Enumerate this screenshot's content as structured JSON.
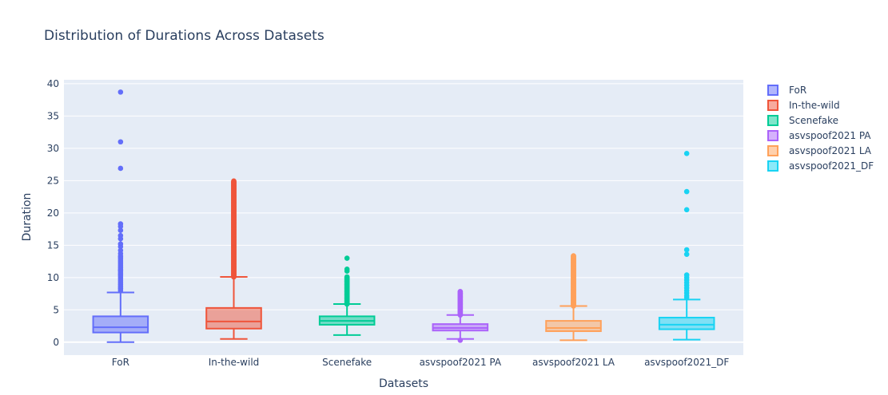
{
  "chart_data": {
    "type": "box",
    "title": "Distribution of Durations Across Datasets",
    "xlabel": "Datasets",
    "ylabel": "Duration",
    "ylim": [
      -2,
      40.6
    ],
    "yticks": [
      0,
      5,
      10,
      15,
      20,
      25,
      30,
      35,
      40
    ],
    "grid": true,
    "legend_position": "right",
    "categories": [
      "FoR",
      "In-the-wild",
      "Scenefake",
      "asvspoof2021 PA",
      "asvspoof2021 LA",
      "asvspoof2021_DF"
    ],
    "series": [
      {
        "name": "FoR",
        "color": "#636efa",
        "min": 0.0,
        "q1": 1.5,
        "median": 2.3,
        "q3": 4.0,
        "max": 7.7,
        "outliers": [
          38.7,
          31.0,
          26.9,
          18.3,
          17.9,
          17.3,
          16.5,
          16.0,
          15.2,
          14.8,
          14.2,
          13.7,
          13.3,
          13.0,
          12.7,
          12.4,
          12.1,
          11.8,
          11.5,
          11.2,
          11.0,
          10.7,
          10.4,
          10.1,
          9.8,
          9.5,
          9.2,
          8.9,
          8.6,
          8.3,
          8.0
        ]
      },
      {
        "name": "In-the-wild",
        "color": "#ef553b",
        "min": 0.5,
        "q1": 2.1,
        "median": 3.2,
        "q3": 5.3,
        "max": 10.1,
        "outlier_range": [
          10.1,
          25.0
        ]
      },
      {
        "name": "Scenefake",
        "color": "#00cc96",
        "min": 1.1,
        "q1": 2.7,
        "median": 3.3,
        "q3": 4.0,
        "max": 5.9,
        "outliers": [
          13.0,
          11.3,
          11.0
        ],
        "outlier_range": [
          5.9,
          10.1
        ]
      },
      {
        "name": "asvspoof2021 PA",
        "color": "#ab63fa",
        "min": 0.5,
        "q1": 1.8,
        "median": 2.2,
        "q3": 2.8,
        "max": 4.2,
        "outliers": [
          0.3
        ],
        "outlier_range": [
          4.2,
          7.9
        ]
      },
      {
        "name": "asvspoof2021 LA",
        "color": "#ffa15a",
        "min": 0.3,
        "q1": 1.7,
        "median": 2.2,
        "q3": 3.3,
        "max": 5.6,
        "outlier_range": [
          5.6,
          13.4
        ]
      },
      {
        "name": "asvspoof2021_DF",
        "color": "#19d3f3",
        "min": 0.4,
        "q1": 2.0,
        "median": 2.7,
        "q3": 3.8,
        "max": 6.6,
        "outliers": [
          29.2,
          23.3,
          20.5,
          14.3,
          13.6,
          10.4,
          10.0,
          9.6,
          9.2,
          8.8,
          8.4,
          8.0,
          7.6,
          7.2,
          6.9
        ]
      }
    ]
  }
}
